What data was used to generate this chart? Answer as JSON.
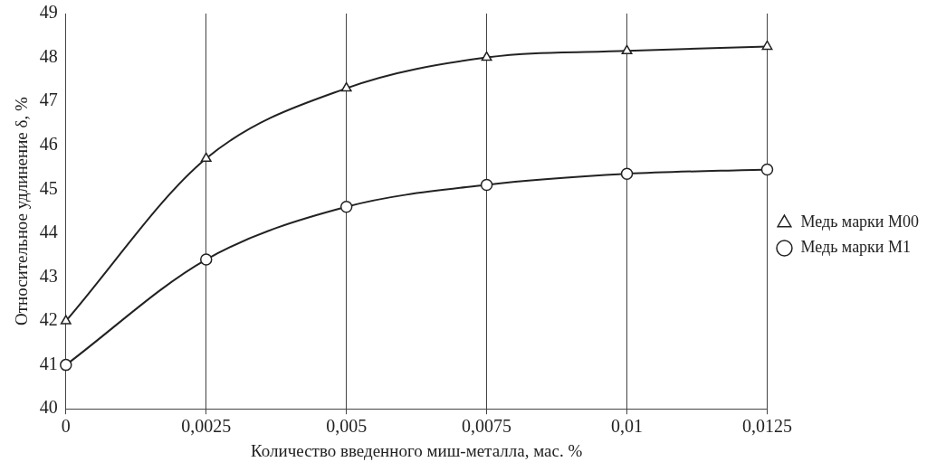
{
  "chart_data": {
    "type": "line",
    "xlabel": "Количество введенного миш-металла, мас. %",
    "ylabel": "Относительное удлинение δ, %",
    "categories": [
      "0",
      "0,0025",
      "0,005",
      "0,0075",
      "0,01",
      "0,0125"
    ],
    "series": [
      {
        "name": "Медь марки М00",
        "color": "#222222",
        "marker": "triangle",
        "values": [
          42,
          45.7,
          47.3,
          48.0,
          48.15,
          48.25
        ]
      },
      {
        "name": "Медь марки М1",
        "color": "#222222",
        "marker": "circle",
        "values": [
          41,
          43.4,
          44.6,
          45.1,
          45.35,
          45.45
        ]
      }
    ],
    "ylim": [
      40,
      49
    ],
    "yticks": [
      40,
      41,
      42,
      43,
      44,
      45,
      46,
      47,
      48,
      49
    ],
    "grid": "x",
    "legend": "right",
    "line_style": "solid"
  }
}
